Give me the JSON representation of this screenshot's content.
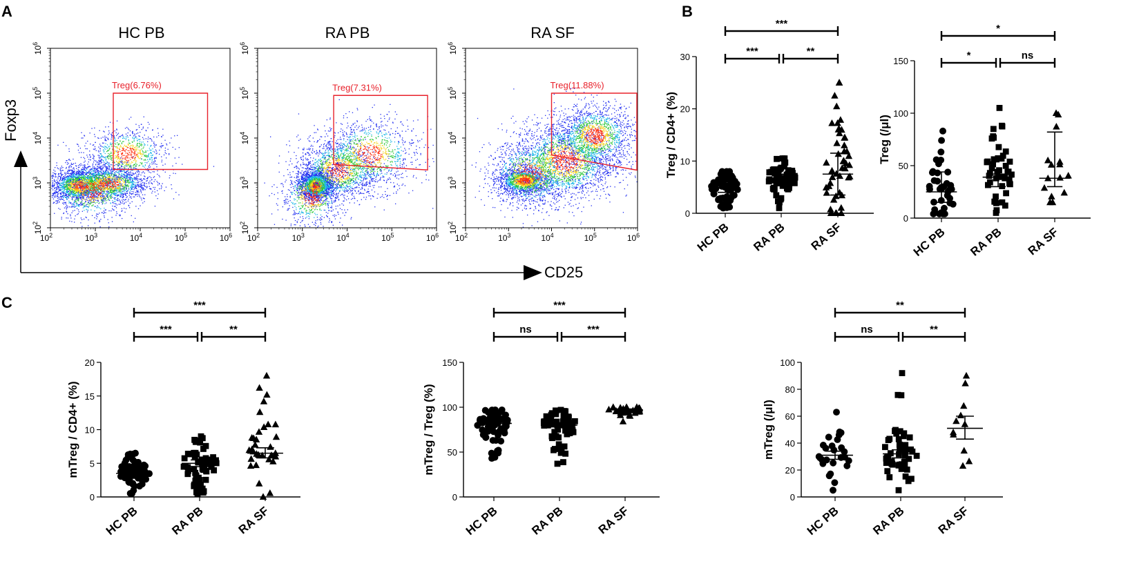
{
  "panels": {
    "a": "A",
    "b": "B",
    "c": "C"
  },
  "flow": {
    "xlabel": "CD25",
    "ylabel": "Foxp3",
    "tick_base": "10",
    "plots": [
      {
        "title": "HC PB",
        "gate": "Treg(6.76%)",
        "gate_x": [
          3.4,
          5.5
        ],
        "gate_y": [
          3.3,
          5.0
        ],
        "clusters": [
          [
            2.65,
            2.95,
            0.35,
            0.18,
            1800
          ],
          [
            3.3,
            3.0,
            0.45,
            0.2,
            1300
          ],
          [
            3.7,
            3.65,
            0.45,
            0.3,
            900
          ],
          [
            2.9,
            2.85,
            0.5,
            0.35,
            900
          ]
        ],
        "hot": [
          [
            2.75,
            2.95
          ]
        ]
      },
      {
        "title": "RA PB",
        "gate": "Treg(7.31%)",
        "gate_x": [
          3.7,
          5.8
        ],
        "gate_y": [
          3.35,
          4.95
        ],
        "clusters": [
          [
            3.3,
            2.95,
            0.18,
            0.16,
            1900
          ],
          [
            3.8,
            3.3,
            0.45,
            0.35,
            1400
          ],
          [
            4.5,
            3.65,
            0.55,
            0.4,
            1100
          ],
          [
            3.2,
            2.7,
            0.35,
            0.35,
            700
          ]
        ],
        "hot": [
          [
            3.25,
            2.95
          ]
        ]
      },
      {
        "title": "RA SF",
        "gate": "Treg(11.88%)",
        "gate_x": [
          4.0,
          6.0
        ],
        "gate_y": [
          3.5,
          5.0
        ],
        "clusters": [
          [
            3.35,
            3.05,
            0.3,
            0.15,
            1500
          ],
          [
            4.3,
            3.5,
            0.6,
            0.45,
            2200
          ],
          [
            5.0,
            4.05,
            0.45,
            0.35,
            1500
          ],
          [
            3.5,
            3.2,
            0.5,
            0.4,
            900
          ]
        ],
        "hot": [
          [
            3.15,
            3.05
          ]
        ]
      }
    ]
  },
  "chart_data": [
    {
      "type": "scatter",
      "panel": "B",
      "ylabel": "Treg / CD4+ (%)",
      "ylim": [
        0,
        30
      ],
      "yticks": [
        0,
        10,
        20,
        30
      ],
      "categories": [
        "HC PB",
        "RA PB",
        "RA SF"
      ],
      "series": [
        {
          "name": "HC PB",
          "marker": "circle",
          "center": 4.8,
          "error": [
            4.0,
            5.5
          ],
          "range": [
            1,
            8
          ],
          "n": 70
        },
        {
          "name": "RA PB",
          "marker": "square",
          "center": 6.5,
          "error": [
            5.5,
            7.5
          ],
          "range": [
            1,
            10.5
          ],
          "n": 70
        },
        {
          "name": "RA SF",
          "marker": "triangle",
          "center": 7.5,
          "error": [
            3.5,
            11.5
          ],
          "range": [
            0,
            25
          ],
          "n": 45
        }
      ],
      "sig": [
        {
          "from": 0,
          "to": 1,
          "label": "***"
        },
        {
          "from": 1,
          "to": 2,
          "label": "**"
        },
        {
          "from": 0,
          "to": 2,
          "label": "***"
        }
      ]
    },
    {
      "type": "scatter",
      "panel": "B",
      "ylabel": "Treg (/μl)",
      "ylim": [
        0,
        150
      ],
      "yticks": [
        0,
        50,
        100,
        150
      ],
      "categories": [
        "HC PB",
        "RA PB",
        "RA SF"
      ],
      "series": [
        {
          "name": "HC PB",
          "marker": "circle",
          "center": 25,
          "error": [
            15,
            44
          ],
          "range": [
            4,
            83
          ],
          "n": 35
        },
        {
          "name": "RA PB",
          "marker": "square",
          "center": 39,
          "error": [
            30,
            42
          ],
          "range": [
            5,
            105
          ],
          "n": 45
        },
        {
          "name": "RA SF",
          "marker": "triangle",
          "center": 38,
          "error": [
            30,
            82
          ],
          "range": [
            15,
            100
          ],
          "n": 13
        }
      ],
      "sig": [
        {
          "from": 0,
          "to": 1,
          "label": "*"
        },
        {
          "from": 1,
          "to": 2,
          "label": "ns"
        },
        {
          "from": 0,
          "to": 2,
          "label": "*"
        }
      ]
    },
    {
      "type": "scatter",
      "panel": "C",
      "ylabel": "mTreg / CD4+ (%)",
      "ylim": [
        0,
        20
      ],
      "yticks": [
        0,
        5,
        10,
        15,
        20
      ],
      "categories": [
        "HC PB",
        "RA PB",
        "RA SF"
      ],
      "series": [
        {
          "name": "HC PB",
          "marker": "circle",
          "center": 3.5,
          "error": [
            3.0,
            4.0
          ],
          "range": [
            0.5,
            6.5
          ],
          "n": 60
        },
        {
          "name": "RA PB",
          "marker": "square",
          "center": 5.0,
          "error": [
            4.5,
            5.5
          ],
          "range": [
            0.5,
            9
          ],
          "n": 70
        },
        {
          "name": "RA SF",
          "marker": "triangle",
          "center": 6.5,
          "error": [
            5.8,
            7.3
          ],
          "range": [
            0,
            18
          ],
          "n": 30
        }
      ],
      "sig": [
        {
          "from": 0,
          "to": 1,
          "label": "***"
        },
        {
          "from": 1,
          "to": 2,
          "label": "**"
        },
        {
          "from": 0,
          "to": 2,
          "label": "***"
        }
      ]
    },
    {
      "type": "scatter",
      "panel": "C",
      "ylabel": "mTreg / Treg (%)",
      "ylim": [
        0,
        150
      ],
      "yticks": [
        0,
        50,
        100,
        150
      ],
      "categories": [
        "HC PB",
        "RA PB",
        "RA SF"
      ],
      "series": [
        {
          "name": "HC PB",
          "marker": "circle",
          "center": 82,
          "error": [
            79,
            85
          ],
          "range": [
            43,
            97
          ],
          "n": 60
        },
        {
          "name": "RA PB",
          "marker": "square",
          "center": 80,
          "error": [
            78,
            82
          ],
          "range": [
            37,
            97
          ],
          "n": 70
        },
        {
          "name": "RA SF",
          "marker": "triangle",
          "center": 97,
          "error": [
            96,
            98
          ],
          "range": [
            84,
            100
          ],
          "n": 30
        }
      ],
      "sig": [
        {
          "from": 0,
          "to": 1,
          "label": "ns"
        },
        {
          "from": 1,
          "to": 2,
          "label": "***"
        },
        {
          "from": 0,
          "to": 2,
          "label": "***"
        }
      ]
    },
    {
      "type": "scatter",
      "panel": "C",
      "ylabel": "mTreg (/μl)",
      "ylim": [
        0,
        100
      ],
      "yticks": [
        0,
        20,
        40,
        60,
        80,
        100
      ],
      "categories": [
        "HC PB",
        "RA PB",
        "RA SF"
      ],
      "series": [
        {
          "name": "HC PB",
          "marker": "circle",
          "center": 31,
          "error": [
            28,
            34
          ],
          "range": [
            5,
            63
          ],
          "n": 24
        },
        {
          "name": "RA PB",
          "marker": "square",
          "center": 32,
          "error": [
            29,
            35
          ],
          "range": [
            5,
            92
          ],
          "n": 45
        },
        {
          "name": "RA SF",
          "marker": "triangle",
          "center": 51,
          "error": [
            43,
            60
          ],
          "range": [
            23,
            90
          ],
          "n": 9
        }
      ],
      "sig": [
        {
          "from": 0,
          "to": 1,
          "label": "ns"
        },
        {
          "from": 1,
          "to": 2,
          "label": "**"
        },
        {
          "from": 0,
          "to": 2,
          "label": "**"
        }
      ]
    }
  ]
}
